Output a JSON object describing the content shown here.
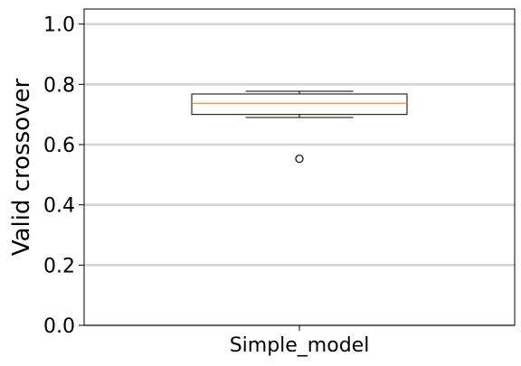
{
  "chart_data": {
    "type": "boxplot",
    "title": "",
    "xlabel": "",
    "ylabel": "Valid crossover",
    "ylim": [
      0.0,
      1.05
    ],
    "yticks": [
      {
        "value": 0.0,
        "label": "0.0"
      },
      {
        "value": 0.2,
        "label": "0.2"
      },
      {
        "value": 0.4,
        "label": "0.4"
      },
      {
        "value": 0.6,
        "label": "0.6"
      },
      {
        "value": 0.8,
        "label": "0.8"
      },
      {
        "value": 1.0,
        "label": "1.0"
      }
    ],
    "grid": "horizontal",
    "categories": [
      "Simple_model"
    ],
    "boxes": [
      {
        "category": "Simple_model",
        "whisker_low": 0.69,
        "q1": 0.7,
        "median": 0.737,
        "q3": 0.768,
        "whisker_high": 0.777,
        "outliers": [
          0.553
        ]
      }
    ],
    "colors": {
      "box": "#000000",
      "median": "#ff7f0e",
      "grid": "#d3d3d3"
    }
  }
}
